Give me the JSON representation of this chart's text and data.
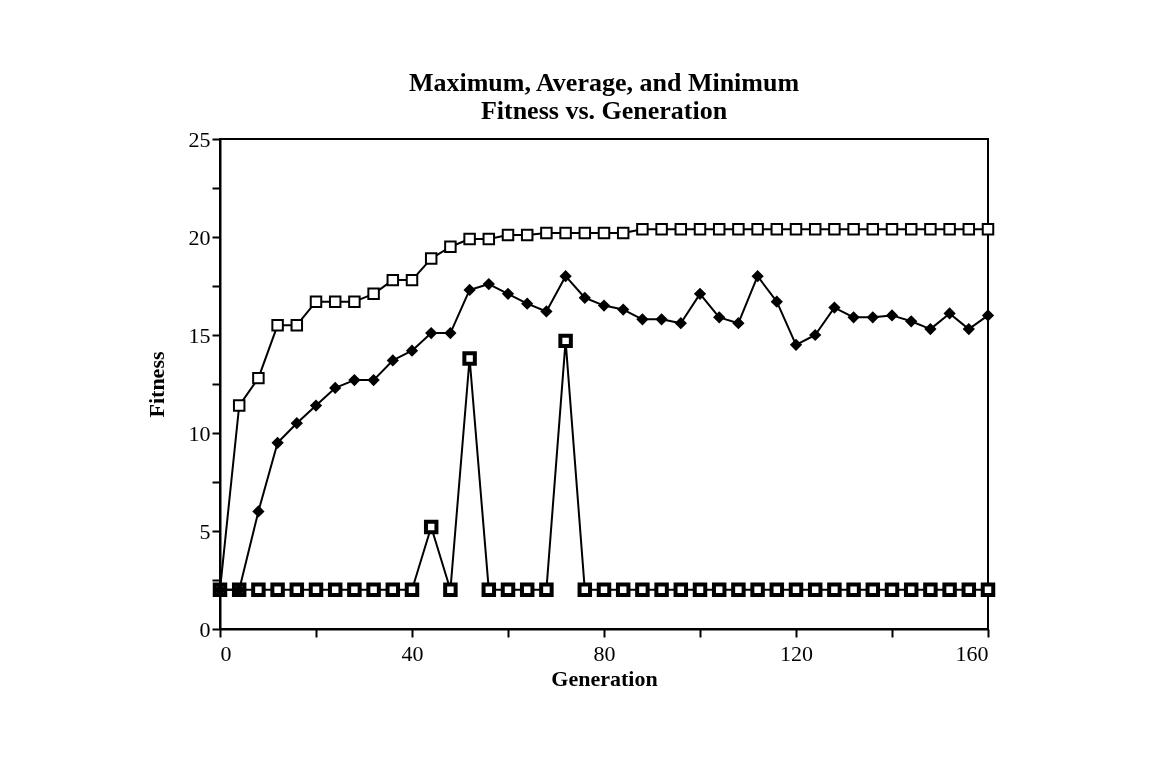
{
  "chart_data": {
    "type": "line",
    "title": [
      "Maximum, Average, and Minimum",
      "Fitness vs. Generation"
    ],
    "xlabel": "Generation",
    "ylabel": "Fitness",
    "x": [
      0,
      4,
      8,
      12,
      16,
      20,
      24,
      28,
      32,
      36,
      40,
      44,
      48,
      52,
      56,
      60,
      64,
      68,
      72,
      76,
      80,
      84,
      88,
      92,
      96,
      100,
      104,
      108,
      112,
      116,
      120,
      124,
      128,
      132,
      136,
      140,
      144,
      148,
      152,
      156,
      160
    ],
    "series": [
      {
        "color": "#000000",
        "marker": "square",
        "values": [
          2,
          11.4,
          12.8,
          15.5,
          15.5,
          16.7,
          16.7,
          16.7,
          17.1,
          17.8,
          17.8,
          18.9,
          19.5,
          19.9,
          19.9,
          20.1,
          20.1,
          20.2,
          20.2,
          20.2,
          20.2,
          20.2,
          20.4,
          20.4,
          20.4,
          20.4,
          20.4,
          20.4,
          20.4,
          20.4,
          20.4,
          20.4,
          20.4,
          20.4,
          20.4,
          20.4,
          20.4,
          20.4,
          20.4,
          20.4,
          20.4
        ]
      },
      {
        "color": "#000000",
        "marker": "diamond",
        "values": [
          2,
          2,
          6.0,
          9.5,
          10.5,
          11.4,
          12.3,
          12.7,
          12.7,
          13.7,
          14.2,
          15.1,
          15.1,
          17.3,
          17.6,
          17.1,
          16.6,
          16.2,
          18.0,
          16.9,
          16.5,
          16.3,
          15.8,
          15.8,
          15.6,
          17.1,
          15.9,
          15.6,
          18.0,
          16.7,
          14.5,
          15.0,
          16.4,
          15.9,
          15.9,
          16.0,
          15.7,
          15.3,
          16.1,
          15.3,
          16.0
        ]
      },
      {
        "color": "#000000",
        "marker": "square",
        "values": [
          2,
          2,
          2,
          2,
          2,
          2,
          2,
          2,
          2,
          2,
          2,
          5.2,
          2,
          13.8,
          2,
          2,
          2,
          2,
          14.7,
          2,
          2,
          2,
          2,
          2,
          2,
          2,
          2,
          2,
          2,
          2,
          2,
          2,
          2,
          2,
          2,
          2,
          2,
          2,
          2,
          2,
          2
        ]
      }
    ],
    "xlim": [
      0,
      160
    ],
    "xticks": [
      0,
      {
        "value": 20,
        "label": null
      },
      40,
      {
        "value": 60,
        "label": null
      },
      80,
      {
        "value": 100,
        "label": null
      },
      120,
      {
        "value": 140,
        "label": null
      },
      160
    ],
    "ylim": [
      0,
      25
    ],
    "yticks": [
      0,
      {
        "value": 2.5,
        "label": null
      },
      5,
      {
        "value": 7.5,
        "label": null
      },
      10,
      {
        "value": 12.5,
        "label": null
      },
      15,
      {
        "value": 17.5,
        "label": null
      },
      20,
      {
        "value": 22.5,
        "label": null
      },
      25
    ],
    "grid": false,
    "line_style": "solid"
  }
}
